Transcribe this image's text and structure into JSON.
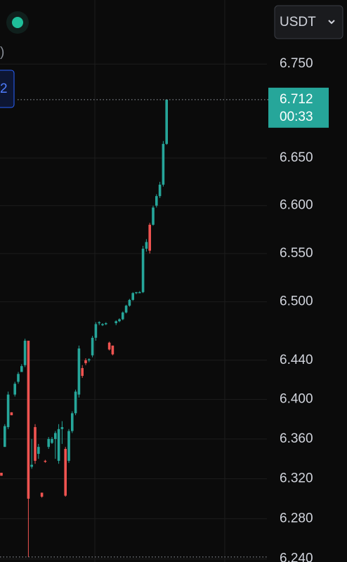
{
  "chart_data": {
    "type": "candlestick",
    "currency": "USDT",
    "legend_fragment": ")",
    "badge_fragment": "2",
    "log_scale": true,
    "ylim": [
      6.237,
      6.819
    ],
    "yticks": [
      {
        "value": 6.24,
        "label": "6.240"
      },
      {
        "value": 6.28,
        "label": "6.280"
      },
      {
        "value": 6.32,
        "label": "6.320"
      },
      {
        "value": 6.36,
        "label": "6.360"
      },
      {
        "value": 6.4,
        "label": "6.400"
      },
      {
        "value": 6.44,
        "label": "6.440"
      },
      {
        "value": 6.5,
        "label": "6.500"
      },
      {
        "value": 6.55,
        "label": "6.550"
      },
      {
        "value": 6.6,
        "label": "6.600"
      },
      {
        "value": 6.65,
        "label": "6.650"
      },
      {
        "value": 6.75,
        "label": "6.750"
      }
    ],
    "up_color": "#26a69a",
    "down_color": "#ef5350",
    "last_price": {
      "value": 6.712,
      "label": "6.712"
    },
    "countdown": "00:33",
    "low_line": 6.242,
    "open": [
      6.326,
      6.352,
      6.372,
      6.387,
      6.405,
      6.418,
      6.428,
      6.435,
      6.46,
      6.332,
      6.372,
      6.345,
      6.306,
      6.338,
      6.352,
      6.356,
      6.36,
      6.338,
      6.37,
      6.35,
      6.338,
      6.368,
      6.386,
      6.405,
      6.432,
      6.44,
      6.44,
      6.445,
      6.463,
      6.478,
      6.476,
      6.477,
      6.458,
      6.455,
      6.478,
      6.48,
      6.482,
      6.489,
      6.496,
      6.502,
      6.509,
      6.51,
      6.51,
      6.555,
      6.58,
      6.58,
      6.6,
      6.61,
      6.622,
      6.665
    ],
    "high": [
      6.326,
      6.375,
      6.408,
      6.387,
      6.418,
      6.428,
      6.436,
      6.462,
      6.46,
      6.36,
      6.375,
      6.355,
      6.306,
      6.339,
      6.362,
      6.362,
      6.368,
      6.375,
      6.378,
      6.352,
      6.37,
      6.388,
      6.41,
      6.455,
      6.435,
      6.442,
      6.442,
      6.465,
      6.479,
      6.48,
      6.478,
      6.479,
      6.459,
      6.455,
      6.481,
      6.483,
      6.49,
      6.497,
      6.503,
      6.51,
      6.51,
      6.511,
      6.558,
      6.565,
      6.582,
      6.6,
      6.612,
      6.625,
      6.668,
      6.712
    ],
    "low": [
      6.323,
      6.352,
      6.37,
      6.384,
      6.403,
      6.416,
      6.428,
      6.433,
      6.242,
      6.33,
      6.335,
      6.34,
      6.301,
      6.336,
      6.35,
      6.355,
      6.34,
      6.335,
      6.355,
      6.302,
      6.336,
      6.366,
      6.384,
      6.402,
      6.422,
      6.435,
      6.438,
      6.443,
      6.46,
      6.476,
      6.475,
      6.476,
      6.45,
      6.445,
      6.476,
      6.479,
      6.481,
      6.488,
      6.495,
      6.501,
      6.508,
      6.509,
      6.509,
      6.552,
      6.55,
      6.579,
      6.598,
      6.608,
      6.62,
      6.664
    ],
    "close": [
      6.323,
      6.373,
      6.405,
      6.384,
      6.416,
      6.426,
      6.434,
      6.46,
      6.3,
      6.334,
      6.338,
      6.352,
      6.302,
      6.337,
      6.36,
      6.36,
      6.366,
      6.37,
      6.372,
      6.303,
      6.368,
      6.386,
      6.408,
      6.452,
      6.424,
      6.437,
      6.441,
      6.463,
      6.477,
      6.479,
      6.477,
      6.478,
      6.451,
      6.446,
      6.48,
      6.482,
      6.489,
      6.496,
      6.502,
      6.509,
      6.51,
      6.51,
      6.555,
      6.562,
      6.553,
      6.598,
      6.61,
      6.622,
      6.665,
      6.712
    ]
  }
}
